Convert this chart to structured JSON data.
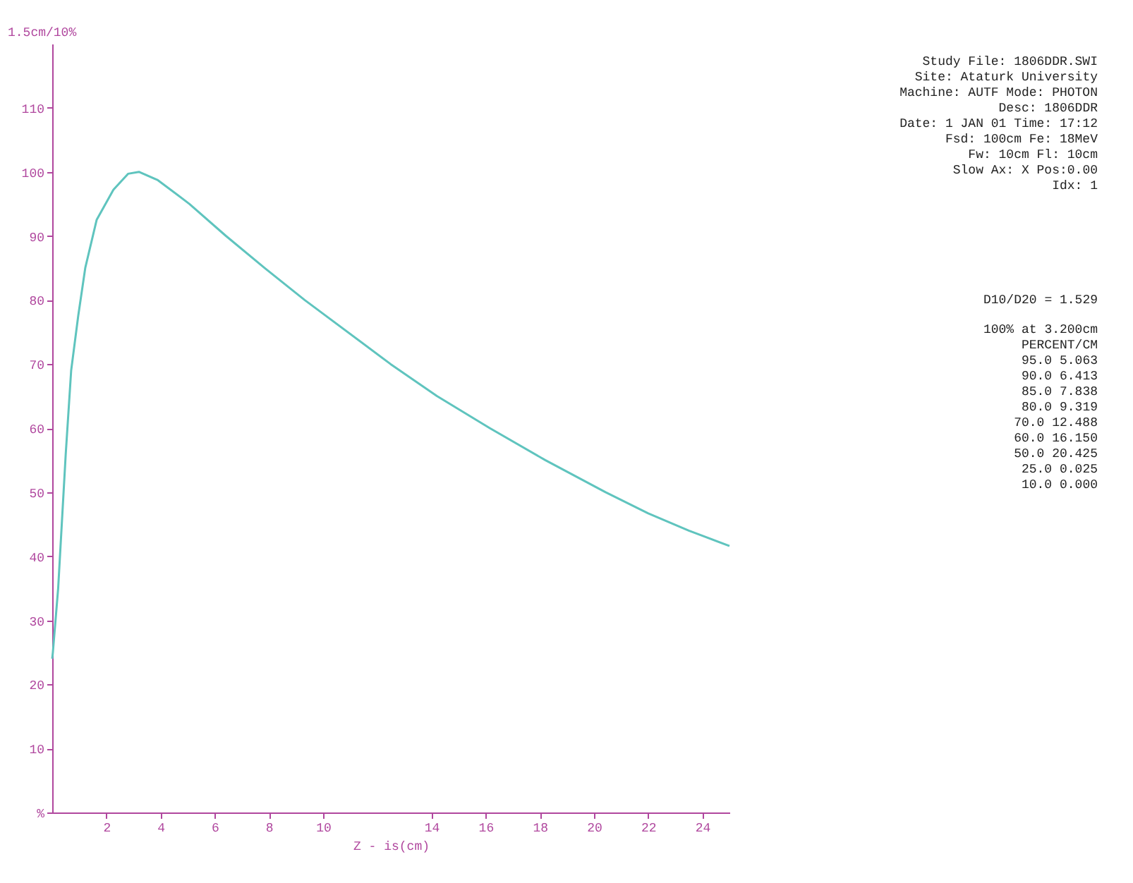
{
  "chart_data": {
    "type": "line",
    "xlabel": "Z - is(cm)",
    "ylabel": "1.5cm/10%",
    "x": [
      0,
      0.025,
      0.22,
      0.5,
      0.7,
      0.96,
      1.22,
      1.64,
      2.26,
      2.8,
      3.2,
      3.9,
      5.063,
      6.413,
      7.838,
      9.319,
      12.488,
      14.2,
      16.15,
      18.2,
      20.425,
      22,
      23.5,
      25
    ],
    "series": [
      {
        "color": "#5fc4be",
        "values": [
          24,
          25,
          35,
          56,
          69,
          77.5,
          85,
          92.5,
          97.2,
          99.7,
          100,
          98.7,
          95,
          90,
          85,
          80,
          70,
          65,
          60,
          55,
          50,
          46.7,
          44,
          41.6
        ]
      }
    ],
    "xlim": [
      0,
      25
    ],
    "ylim": [
      0,
      120
    ],
    "xticks": [
      2,
      4,
      6,
      8,
      10,
      14,
      16,
      18,
      20,
      22,
      24
    ],
    "yticks": [
      {
        "value": 0,
        "label": "%"
      },
      10,
      20,
      30,
      40,
      50,
      60,
      70,
      80,
      90,
      100,
      110
    ],
    "grid": false,
    "legend": false,
    "line_style": "solid",
    "marker": "none",
    "annotations": [
      "Study File: 1806DDR.SWI",
      "Site: Ataturk University",
      "Machine: AUTF Mode:  PHOTON",
      "Desc: 1806DDR",
      "Date:  1 JAN 01  Time: 17:12",
      "Fsd: 100cm Fe: 18MeV",
      "Fw: 10cm Fl: 10cm",
      "Slow Ax: X Pos:0.00",
      "Idx: 1",
      "D10/D20 = 1.529",
      "100% at 3.200cm",
      "PERCENT/CM",
      "95.0  5.063",
      "90.0  6.413",
      "85.0  7.838",
      "80.0  9.319",
      "70.0 12.488",
      "60.0 16.150",
      "50.0 20.425",
      "25.0  0.025",
      "10.0  0.000"
    ]
  }
}
